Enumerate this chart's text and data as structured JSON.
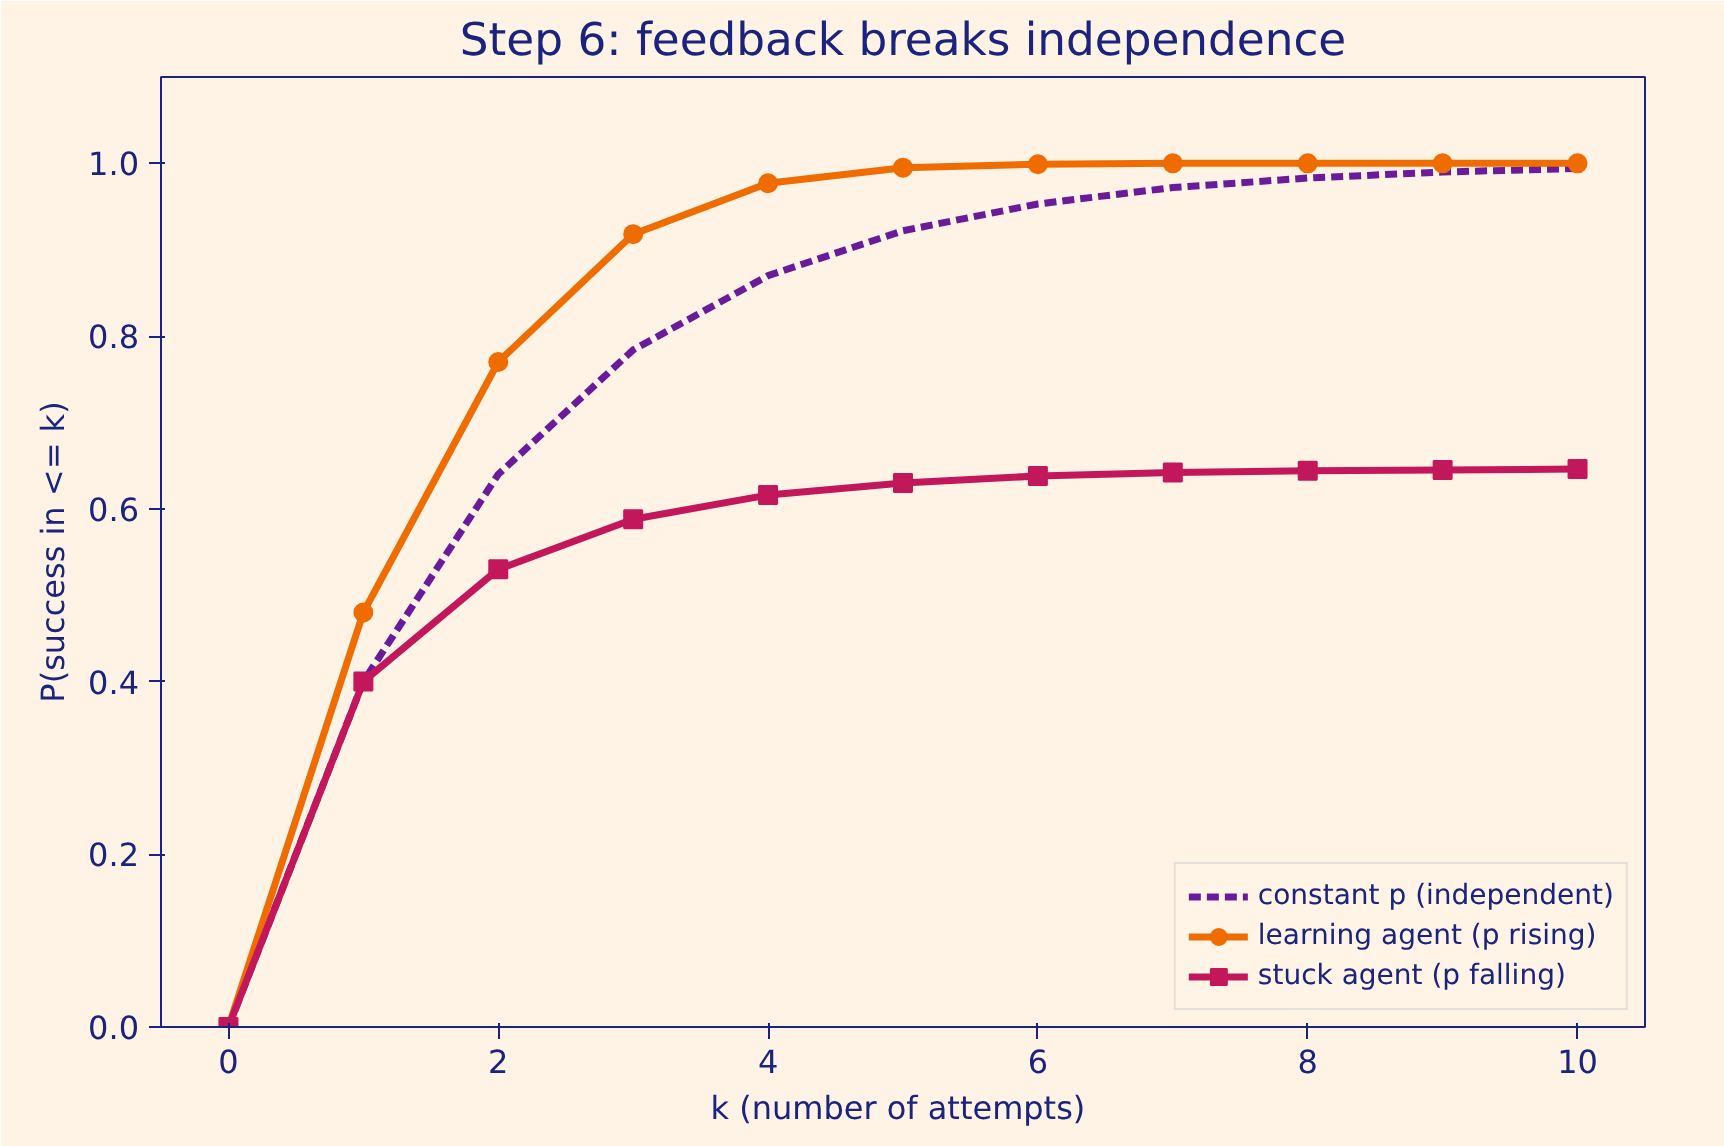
{
  "chart_data": {
    "type": "line",
    "title": "Step 6: feedback breaks independence",
    "xlabel": "k  (number of attempts)",
    "ylabel": "P(success in <= k)",
    "x": [
      0,
      1,
      2,
      3,
      4,
      5,
      6,
      7,
      8,
      9,
      10
    ],
    "series": [
      {
        "name": "constant p (independent)",
        "color": "#6a1b9a",
        "marker": "none",
        "line_style": "dashed",
        "values": [
          0,
          0.4,
          0.64,
          0.784,
          0.87,
          0.922,
          0.953,
          0.972,
          0.983,
          0.99,
          0.994
        ]
      },
      {
        "name": "learning agent (p rising)",
        "color": "#ef6c00",
        "marker": "circle",
        "line_style": "solid",
        "values": [
          0,
          0.48,
          0.77,
          0.918,
          0.977,
          0.995,
          0.999,
          1.0,
          1.0,
          1.0,
          1.0
        ]
      },
      {
        "name": "stuck agent (p falling)",
        "color": "#c2185b",
        "marker": "square",
        "line_style": "solid",
        "values": [
          0,
          0.4,
          0.53,
          0.588,
          0.616,
          0.63,
          0.638,
          0.642,
          0.644,
          0.645,
          0.646
        ]
      }
    ],
    "xlim": [
      -0.5,
      10.5
    ],
    "ylim": [
      0,
      1.1
    ],
    "xticks": [
      0,
      2,
      4,
      6,
      8,
      10
    ],
    "yticks": [
      {
        "value": 0,
        "label": "0.0"
      },
      {
        "value": 0.2,
        "label": "0.2"
      },
      {
        "value": 0.4,
        "label": "0.4"
      },
      {
        "value": 0.6,
        "label": "0.6"
      },
      {
        "value": 0.8,
        "label": "0.8"
      },
      {
        "value": 1.0,
        "label": "1.0"
      }
    ],
    "grid": false,
    "legend": "bottom right"
  }
}
